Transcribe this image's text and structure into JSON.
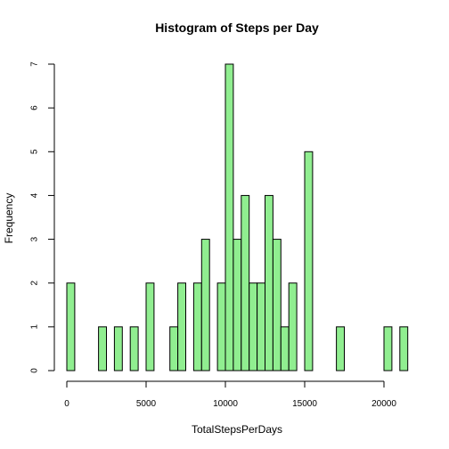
{
  "chart_data": {
    "type": "bar",
    "title": "Histogram of Steps per Day",
    "xlabel": "TotalStepsPerDays",
    "ylabel": "Frequency",
    "bin_width": 500,
    "x_start": 0,
    "xlim": [
      0,
      21500
    ],
    "ylim": [
      0,
      7
    ],
    "xticks": [
      0,
      5000,
      10000,
      15000,
      20000
    ],
    "yticks": [
      0,
      1,
      2,
      3,
      4,
      5,
      6,
      7
    ],
    "bar_color": "#90ee90",
    "values": [
      2,
      0,
      0,
      0,
      1,
      0,
      1,
      0,
      1,
      0,
      2,
      0,
      0,
      1,
      2,
      0,
      2,
      3,
      0,
      2,
      7,
      3,
      4,
      2,
      2,
      4,
      3,
      1,
      2,
      0,
      5,
      0,
      0,
      0,
      1,
      0,
      0,
      0,
      0,
      0,
      1,
      0,
      1
    ]
  }
}
